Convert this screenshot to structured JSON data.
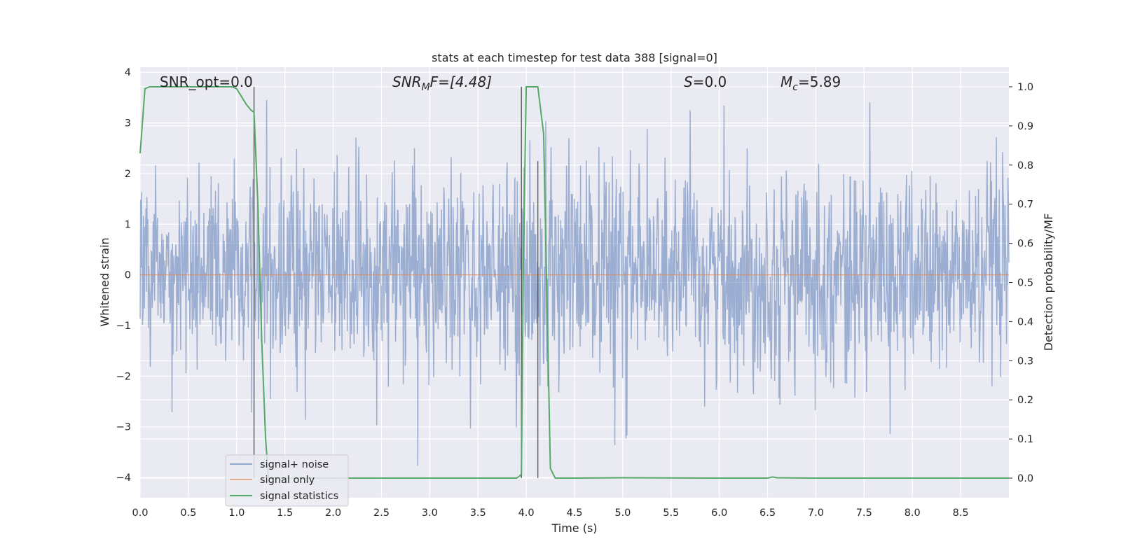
{
  "chart_data": {
    "type": "line",
    "title": "stats at each timestep for test data 388 [signal=0]",
    "xlabel": "Time (s)",
    "ylabel": "Whitened strain",
    "y2label": "Detection probability/MF",
    "xlim": [
      0.0,
      9.0
    ],
    "ylim": [
      -4.4,
      4.1
    ],
    "y2lim": [
      -0.05,
      1.05
    ],
    "xticks": [
      "0.0",
      "0.5",
      "1.0",
      "1.5",
      "2.0",
      "2.5",
      "3.0",
      "3.5",
      "4.0",
      "4.5",
      "5.0",
      "5.5",
      "6.0",
      "6.5",
      "7.0",
      "7.5",
      "8.0",
      "8.5"
    ],
    "yticks": [
      "4",
      "3",
      "2",
      "1",
      "0",
      "−1",
      "−2",
      "−3",
      "−4"
    ],
    "y2ticks": [
      "1.0",
      "0.9",
      "0.8",
      "0.7",
      "0.6",
      "0.5",
      "0.4",
      "0.3",
      "0.2",
      "0.1",
      "0.0"
    ],
    "grid": true,
    "legend_position": "lower-left",
    "annotations": {
      "snr_opt": "SNR_opt=0.0",
      "snr_mf_main": "SNR",
      "snr_mf_sub": "M",
      "snr_mf_rest": "F=[4.48]",
      "s_main": "S",
      "s_rest": "=0.0",
      "mc_main": "M",
      "mc_sub": "c",
      "mc_rest": "=5.89"
    },
    "series": [
      {
        "name": "signal+ noise",
        "color": "#4c72b0",
        "description_stats": {
          "std": 1.0,
          "n_samples": 1800,
          "peak_high": 3.45,
          "peak_low": -4.05
        }
      },
      {
        "name": "signal only",
        "color": "#dd8452",
        "values_constant": 0.0
      },
      {
        "name": "signal statistics",
        "color": "#55a868",
        "x": [
          0.0,
          0.05,
          0.1,
          0.2,
          0.4,
          0.6,
          0.8,
          0.95,
          1.0,
          1.05,
          1.1,
          1.15,
          1.18,
          1.22,
          1.26,
          1.3,
          1.33,
          1.4,
          2.0,
          3.0,
          3.9,
          3.93,
          3.95,
          3.97,
          4.0,
          4.05,
          4.1,
          4.12,
          4.18,
          4.25,
          4.3,
          4.5,
          5.0,
          6.0,
          6.5,
          6.55,
          6.6,
          7.0,
          8.0,
          9.0
        ],
        "y": [
          0.83,
          0.995,
          1.0,
          1.0,
          1.0,
          1.0,
          1.0,
          1.0,
          0.995,
          0.975,
          0.955,
          0.94,
          0.935,
          0.7,
          0.35,
          0.1,
          0.0,
          0.0,
          0.0,
          0.0,
          0.0,
          0.005,
          0.01,
          0.55,
          1.0,
          1.0,
          1.0,
          1.0,
          0.88,
          0.025,
          0.0,
          0.0,
          0.001,
          0.0,
          0.0,
          0.003,
          0.001,
          0.0,
          0.0,
          0.0
        ]
      }
    ],
    "vertical_markers": [
      {
        "x": 1.18,
        "y_top": 1.0,
        "y_bottom": 0.0
      },
      {
        "x": 3.95,
        "y_top": 1.0,
        "y_bottom": 0.0
      },
      {
        "x": 4.12,
        "y_top": 0.81,
        "y_bottom": 0.0
      }
    ]
  }
}
